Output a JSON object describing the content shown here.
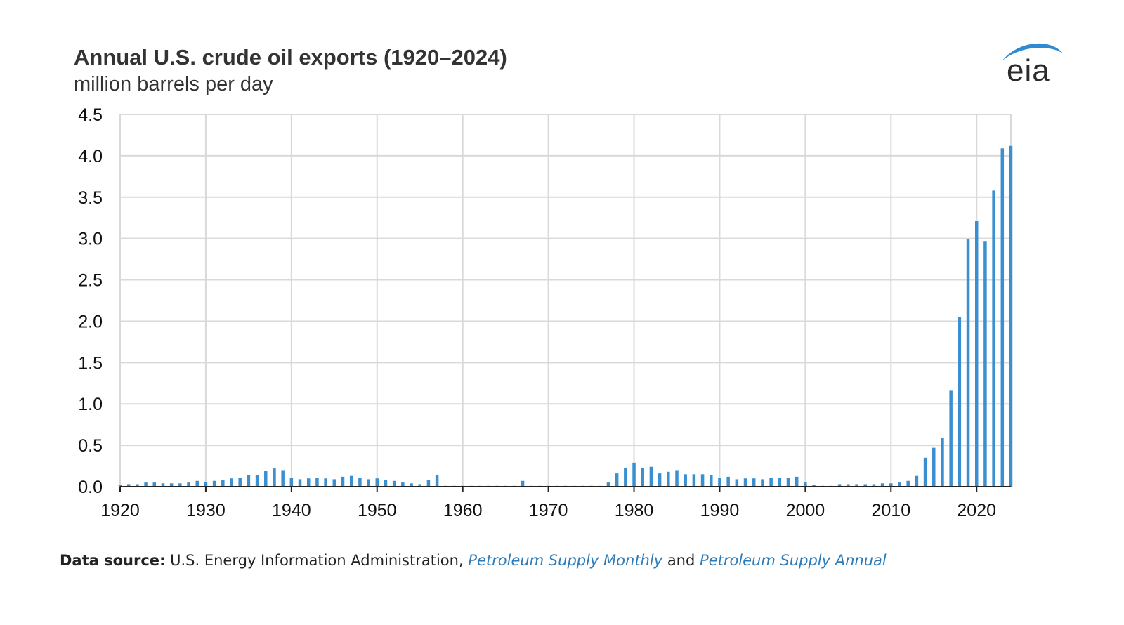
{
  "chart_data": {
    "type": "bar",
    "title": "Annual U.S. crude oil exports (1920–2024)",
    "subtitle": "million barrels per day",
    "xlabel": "",
    "ylabel": "",
    "ylim": [
      0,
      4.5
    ],
    "yticks": [
      "0.0",
      "0.5",
      "1.0",
      "1.5",
      "2.0",
      "2.5",
      "3.0",
      "3.5",
      "4.0",
      "4.5"
    ],
    "xticks": [
      "1920",
      "1930",
      "1940",
      "1950",
      "1960",
      "1970",
      "1980",
      "1990",
      "2000",
      "2010",
      "2020"
    ],
    "grid": true,
    "bar_color": "#3a8fd1",
    "x": [
      1920,
      1921,
      1922,
      1923,
      1924,
      1925,
      1926,
      1927,
      1928,
      1929,
      1930,
      1931,
      1932,
      1933,
      1934,
      1935,
      1936,
      1937,
      1938,
      1939,
      1940,
      1941,
      1942,
      1943,
      1944,
      1945,
      1946,
      1947,
      1948,
      1949,
      1950,
      1951,
      1952,
      1953,
      1954,
      1955,
      1956,
      1957,
      1958,
      1959,
      1960,
      1961,
      1962,
      1963,
      1964,
      1965,
      1966,
      1967,
      1968,
      1969,
      1970,
      1971,
      1972,
      1973,
      1974,
      1975,
      1976,
      1977,
      1978,
      1979,
      1980,
      1981,
      1982,
      1983,
      1984,
      1985,
      1986,
      1987,
      1988,
      1989,
      1990,
      1991,
      1992,
      1993,
      1994,
      1995,
      1996,
      1997,
      1998,
      1999,
      2000,
      2001,
      2002,
      2003,
      2004,
      2005,
      2006,
      2007,
      2008,
      2009,
      2010,
      2011,
      2012,
      2013,
      2014,
      2015,
      2016,
      2017,
      2018,
      2019,
      2020,
      2021,
      2022,
      2023,
      2024
    ],
    "values": [
      0.02,
      0.03,
      0.03,
      0.05,
      0.05,
      0.04,
      0.04,
      0.04,
      0.05,
      0.07,
      0.06,
      0.07,
      0.08,
      0.1,
      0.11,
      0.14,
      0.14,
      0.19,
      0.22,
      0.2,
      0.11,
      0.09,
      0.1,
      0.11,
      0.1,
      0.09,
      0.12,
      0.13,
      0.11,
      0.09,
      0.1,
      0.08,
      0.07,
      0.05,
      0.04,
      0.03,
      0.08,
      0.14,
      0.01,
      0.01,
      0.01,
      0.01,
      0.01,
      0.01,
      0.01,
      0.01,
      0.01,
      0.07,
      0.01,
      0.01,
      0.01,
      0.01,
      0.01,
      0.01,
      0.01,
      0.01,
      0.01,
      0.05,
      0.16,
      0.23,
      0.29,
      0.23,
      0.24,
      0.16,
      0.18,
      0.2,
      0.15,
      0.15,
      0.15,
      0.14,
      0.11,
      0.12,
      0.09,
      0.1,
      0.1,
      0.09,
      0.11,
      0.11,
      0.11,
      0.12,
      0.05,
      0.02,
      0.01,
      0.01,
      0.03,
      0.03,
      0.03,
      0.03,
      0.03,
      0.04,
      0.04,
      0.05,
      0.07,
      0.13,
      0.35,
      0.47,
      0.59,
      1.16,
      2.05,
      2.99,
      3.21,
      2.97,
      3.58,
      4.09,
      4.12
    ]
  },
  "logo": {
    "text": "eia",
    "swoosh_color": "#2e8bd3"
  },
  "source": {
    "label": "Data source:",
    "text_before": " U.S. Energy Information Administration, ",
    "pub1": "Petroleum Supply Monthly",
    "text_mid": " and ",
    "pub2": "Petroleum Supply Annual"
  }
}
